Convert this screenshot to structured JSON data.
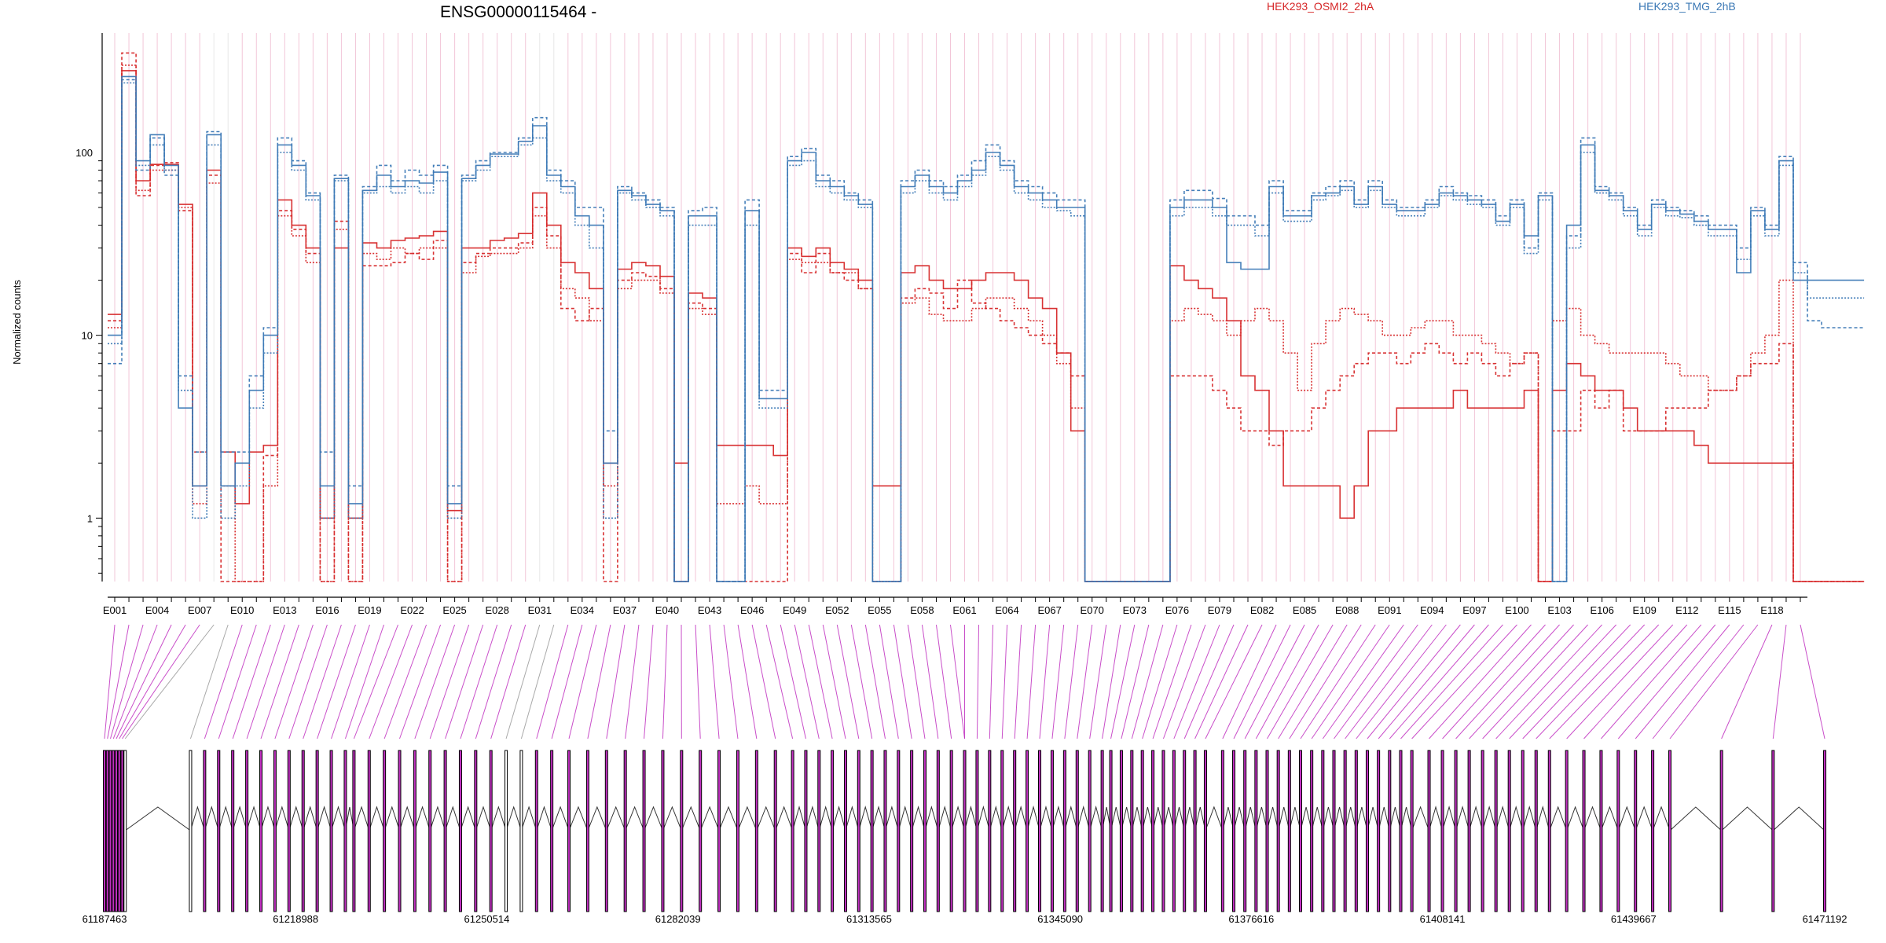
{
  "chart_data": {
    "type": "line",
    "title": "ENSG00000115464 -",
    "ylabel": "Normalized counts",
    "y_scale": "log",
    "ylim": [
      0.45,
      450
    ],
    "y_ticks": [
      1,
      10,
      100
    ],
    "y_tick_labels": [
      "1",
      "10",
      "100"
    ],
    "grid": false,
    "legend_position": "top-right",
    "exon_count": 120,
    "exon_tick_labels": [
      "E001",
      "E004",
      "E007",
      "E010",
      "E013",
      "E016",
      "E019",
      "E022",
      "E025",
      "E028",
      "E031",
      "E034",
      "E037",
      "E040",
      "E043",
      "E046",
      "E049",
      "E052",
      "E055",
      "E058",
      "E061",
      "E064",
      "E067",
      "E070",
      "E073",
      "E076",
      "E079",
      "E082",
      "E085",
      "E088",
      "E091",
      "E094",
      "E097",
      "E100",
      "E103",
      "E106",
      "E109",
      "E112",
      "E115",
      "E118"
    ],
    "exon_tick_index": [
      1,
      4,
      7,
      10,
      13,
      16,
      19,
      22,
      25,
      28,
      31,
      34,
      37,
      40,
      43,
      46,
      49,
      52,
      55,
      58,
      61,
      64,
      67,
      70,
      73,
      76,
      79,
      82,
      85,
      88,
      91,
      94,
      97,
      100,
      103,
      106,
      109,
      112,
      115,
      118
    ],
    "genomic_range": [
      61187463,
      61471192
    ],
    "genomic_ticks": [
      61187463,
      61218988,
      61250514,
      61282039,
      61313565,
      61345090,
      61376616,
      61408141,
      61439667,
      61471192
    ],
    "genomic_tick_labels": [
      "61187463",
      "61218988",
      "61250514",
      "61282039",
      "61313565",
      "61345090",
      "61376616",
      "61408141",
      "61439667",
      "61471192"
    ],
    "highlighted_exons": [
      1,
      2,
      3,
      4,
      5,
      6,
      7,
      10,
      11,
      12,
      13,
      14,
      15,
      16,
      17,
      18,
      19,
      20,
      21,
      22,
      23,
      24,
      25,
      26,
      27,
      28,
      29,
      30,
      33,
      34,
      35,
      36,
      37,
      38,
      39,
      40,
      41,
      42,
      43,
      44,
      45,
      46,
      47,
      48,
      49,
      50,
      51,
      52,
      53,
      54,
      55,
      56,
      57,
      58,
      59,
      60,
      61,
      62,
      63,
      64,
      65,
      66,
      67,
      68,
      69,
      70,
      71,
      72,
      73,
      74,
      75,
      76,
      77,
      78,
      79,
      80,
      81,
      82,
      83,
      84,
      85,
      86,
      87,
      88,
      89,
      90,
      91,
      92,
      93,
      94,
      95,
      96,
      97,
      98,
      99,
      100,
      101,
      102,
      103,
      104,
      105,
      106,
      107,
      108,
      109,
      110,
      111,
      112,
      113,
      114,
      115,
      116,
      117,
      118,
      119,
      120
    ],
    "colors": {
      "HEK293_OSMI2_2hA": "#d62728",
      "HEK293_TMG_2hB": "#3b78b5",
      "highlight": "#c030c0",
      "plain": "#9a9a9a",
      "exon_box": "#000000",
      "grid_pink": "#f2c6d8",
      "grid_grey": "#e8e8e8"
    },
    "series": [
      {
        "name": "HEK293_OSMI2_2hA",
        "color": "#d62728",
        "replicates": [
          [
            12,
            350,
            58,
            85,
            88,
            48,
            2.3,
            75,
            0.45,
            0.45,
            0.45,
            2.2,
            48,
            38,
            28,
            0.45,
            42,
            0.45,
            24,
            24,
            25,
            28,
            26,
            33,
            0.45,
            25,
            28,
            30,
            30,
            32,
            50,
            35,
            14,
            12,
            14,
            0.45,
            20,
            22,
            21,
            18,
            0.45,
            15,
            14,
            0.45,
            0.45,
            0.45,
            0.45,
            0.45,
            28,
            22,
            28,
            22,
            20,
            18,
            0.45,
            0.45,
            16,
            18,
            17,
            14,
            20,
            15,
            14,
            12,
            11,
            10,
            9,
            8,
            6,
            0.45,
            0.45,
            0.45,
            0.45,
            0.45,
            0.45,
            6,
            6,
            6,
            5,
            4,
            3,
            3,
            2.5,
            3,
            3,
            4,
            5,
            6,
            7,
            8,
            8,
            7,
            8,
            9,
            8,
            7,
            8,
            7,
            6,
            7,
            8,
            0.45,
            3,
            3,
            5,
            4,
            5,
            3,
            3,
            3,
            4,
            4,
            4,
            5,
            5,
            6,
            7,
            7,
            9,
            0.45,
            0.45,
            0.45,
            0.45,
            0.45
          ],
          [
            11,
            300,
            62,
            80,
            80,
            50,
            1.2,
            68,
            1.5,
            0.45,
            0.45,
            1.5,
            45,
            35,
            25,
            0.45,
            38,
            0.45,
            28,
            26,
            30,
            28,
            30,
            30,
            0.45,
            22,
            27,
            28,
            28,
            30,
            45,
            30,
            18,
            16,
            12,
            1.5,
            18,
            20,
            20,
            17,
            0.45,
            14,
            13,
            1.2,
            1.2,
            1.5,
            1.2,
            1.2,
            26,
            25,
            25,
            22,
            22,
            18,
            0.45,
            0.45,
            15,
            16,
            13,
            12,
            12,
            14,
            16,
            16,
            14,
            12,
            10,
            7,
            4,
            0.45,
            0.45,
            0.45,
            0.45,
            0.45,
            0.45,
            12,
            14,
            13,
            12,
            10,
            12,
            14,
            12,
            8,
            5,
            9,
            12,
            14,
            13,
            12,
            10,
            10,
            11,
            12,
            12,
            10,
            10,
            9,
            8,
            7,
            8,
            0.45,
            12,
            14,
            10,
            9,
            8,
            8,
            8,
            8,
            7,
            6,
            6,
            5,
            5,
            6,
            8,
            10,
            20,
            0.45,
            0.45,
            0.45,
            0.45,
            0.45
          ],
          [
            13,
            280,
            70,
            86,
            86,
            52,
            1.5,
            80,
            2.3,
            1.2,
            2.3,
            2.5,
            55,
            40,
            30,
            1.0,
            30,
            1.0,
            32,
            30,
            33,
            34,
            35,
            37,
            1.1,
            30,
            30,
            33,
            34,
            36,
            60,
            40,
            25,
            22,
            18,
            2.0,
            23,
            25,
            24,
            21,
            2.0,
            17,
            16,
            2.5,
            2.5,
            2.5,
            2.5,
            2.2,
            30,
            27,
            30,
            25,
            23,
            20,
            1.5,
            1.5,
            22,
            24,
            20,
            18,
            18,
            20,
            22,
            22,
            20,
            16,
            14,
            8,
            3,
            0.45,
            0.45,
            0.45,
            0.45,
            0.45,
            0.45,
            24,
            20,
            18,
            16,
            12,
            6,
            5,
            3,
            1.5,
            1.5,
            1.5,
            1.5,
            1.0,
            1.5,
            3,
            3,
            4,
            4,
            4,
            4,
            5,
            4,
            4,
            4,
            4,
            5,
            0.45,
            5,
            7,
            6,
            5,
            5,
            4,
            3,
            3,
            3,
            3,
            2.5,
            2,
            2,
            2,
            2,
            2,
            2,
            0.45,
            0.45,
            0.45,
            0.45,
            0.45
          ]
        ]
      },
      {
        "name": "HEK293_TMG_2hB",
        "color": "#3b78b5",
        "replicates": [
          [
            7,
            250,
            80,
            120,
            75,
            6,
            2.3,
            130,
            2.3,
            2.3,
            6,
            11,
            120,
            90,
            60,
            2.3,
            75,
            1.5,
            65,
            85,
            70,
            80,
            75,
            85,
            1.5,
            75,
            90,
            100,
            100,
            120,
            155,
            80,
            70,
            50,
            50,
            3,
            65,
            60,
            55,
            50,
            0.45,
            48,
            50,
            0.45,
            0.45,
            55,
            5,
            5,
            95,
            105,
            75,
            70,
            60,
            55,
            0.45,
            0.45,
            70,
            80,
            70,
            65,
            75,
            90,
            110,
            90,
            70,
            65,
            60,
            55,
            55,
            0.45,
            0.45,
            0.45,
            0.45,
            0.45,
            0.45,
            55,
            62,
            62,
            56,
            45,
            45,
            40,
            70,
            48,
            48,
            60,
            65,
            70,
            55,
            70,
            55,
            50,
            50,
            55,
            65,
            60,
            58,
            55,
            45,
            55,
            30,
            60,
            0.45,
            35,
            120,
            65,
            60,
            50,
            40,
            55,
            50,
            48,
            45,
            40,
            40,
            30,
            50,
            40,
            95,
            25,
            12,
            11,
            11,
            11
          ],
          [
            9,
            240,
            85,
            110,
            80,
            5,
            1.0,
            110,
            1.0,
            1.5,
            4,
            8,
            100,
            80,
            55,
            1.0,
            70,
            1.0,
            60,
            65,
            60,
            65,
            60,
            70,
            1.0,
            70,
            80,
            95,
            95,
            110,
            120,
            70,
            60,
            40,
            30,
            1.0,
            60,
            55,
            50,
            45,
            0.45,
            40,
            40,
            0.45,
            0.45,
            40,
            4,
            4,
            85,
            90,
            65,
            60,
            55,
            50,
            0.45,
            0.45,
            60,
            70,
            60,
            55,
            65,
            75,
            95,
            80,
            60,
            55,
            50,
            48,
            45,
            0.45,
            0.45,
            0.45,
            0.45,
            0.45,
            0.45,
            45,
            50,
            50,
            45,
            40,
            40,
            35,
            60,
            42,
            42,
            55,
            58,
            62,
            50,
            62,
            50,
            45,
            45,
            50,
            58,
            55,
            52,
            50,
            40,
            50,
            28,
            55,
            0.45,
            30,
            100,
            60,
            55,
            45,
            35,
            50,
            45,
            44,
            40,
            35,
            35,
            26,
            45,
            35,
            85,
            22,
            16,
            16,
            16,
            16
          ],
          [
            10,
            260,
            90,
            125,
            85,
            4,
            1.5,
            125,
            1.5,
            2.0,
            5,
            10,
            110,
            85,
            58,
            1.5,
            72,
            1.2,
            62,
            75,
            65,
            70,
            68,
            78,
            1.2,
            72,
            85,
            98,
            98,
            115,
            140,
            75,
            65,
            45,
            40,
            2.0,
            62,
            58,
            52,
            48,
            0.45,
            45,
            45,
            0.45,
            0.45,
            48,
            4.5,
            4.5,
            90,
            100,
            70,
            65,
            58,
            52,
            0.45,
            0.45,
            65,
            75,
            65,
            60,
            70,
            80,
            100,
            85,
            65,
            60,
            55,
            50,
            50,
            0.45,
            0.45,
            0.45,
            0.45,
            0.45,
            0.45,
            50,
            55,
            55,
            50,
            25,
            23,
            23,
            65,
            45,
            45,
            58,
            60,
            65,
            52,
            65,
            52,
            48,
            48,
            52,
            60,
            58,
            55,
            52,
            42,
            52,
            35,
            58,
            0.45,
            40,
            110,
            62,
            58,
            48,
            38,
            52,
            48,
            46,
            42,
            38,
            38,
            22,
            48,
            38,
            90,
            20,
            20,
            20,
            20,
            20
          ]
        ]
      }
    ]
  }
}
